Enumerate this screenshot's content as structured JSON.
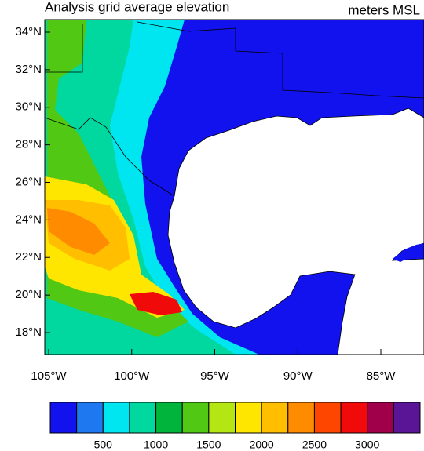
{
  "map_data": {
    "title": "Analysis grid average elevation",
    "units": "meters MSL",
    "lat_ticks": [
      {
        "value": 18,
        "label": "18°N"
      },
      {
        "value": 20,
        "label": "20°N"
      },
      {
        "value": 22,
        "label": "22°N"
      },
      {
        "value": 24,
        "label": "24°N"
      },
      {
        "value": 26,
        "label": "26°N"
      },
      {
        "value": 28,
        "label": "28°N"
      },
      {
        "value": 30,
        "label": "30°N"
      },
      {
        "value": 32,
        "label": "32°N"
      },
      {
        "value": 34,
        "label": "34°N"
      }
    ],
    "lon_ticks": [
      {
        "value": -105,
        "label": "105°W"
      },
      {
        "value": -100,
        "label": "100°W"
      },
      {
        "value": -95,
        "label": "95°W"
      },
      {
        "value": -90,
        "label": "90°W"
      },
      {
        "value": -85,
        "label": "85°W"
      }
    ],
    "colorbar": {
      "clim": [
        0,
        3500
      ],
      "colors": [
        "#1212ee",
        "#1e78f0",
        "#00e6f0",
        "#00d8a0",
        "#00b43c",
        "#50c814",
        "#b4e614",
        "#ffe600",
        "#ffbe00",
        "#ff8c00",
        "#ff4600",
        "#f00a0a",
        "#a0004a",
        "#5a1496"
      ],
      "ticks": [
        500,
        1000,
        1500,
        2000,
        2500,
        3000
      ]
    }
  }
}
